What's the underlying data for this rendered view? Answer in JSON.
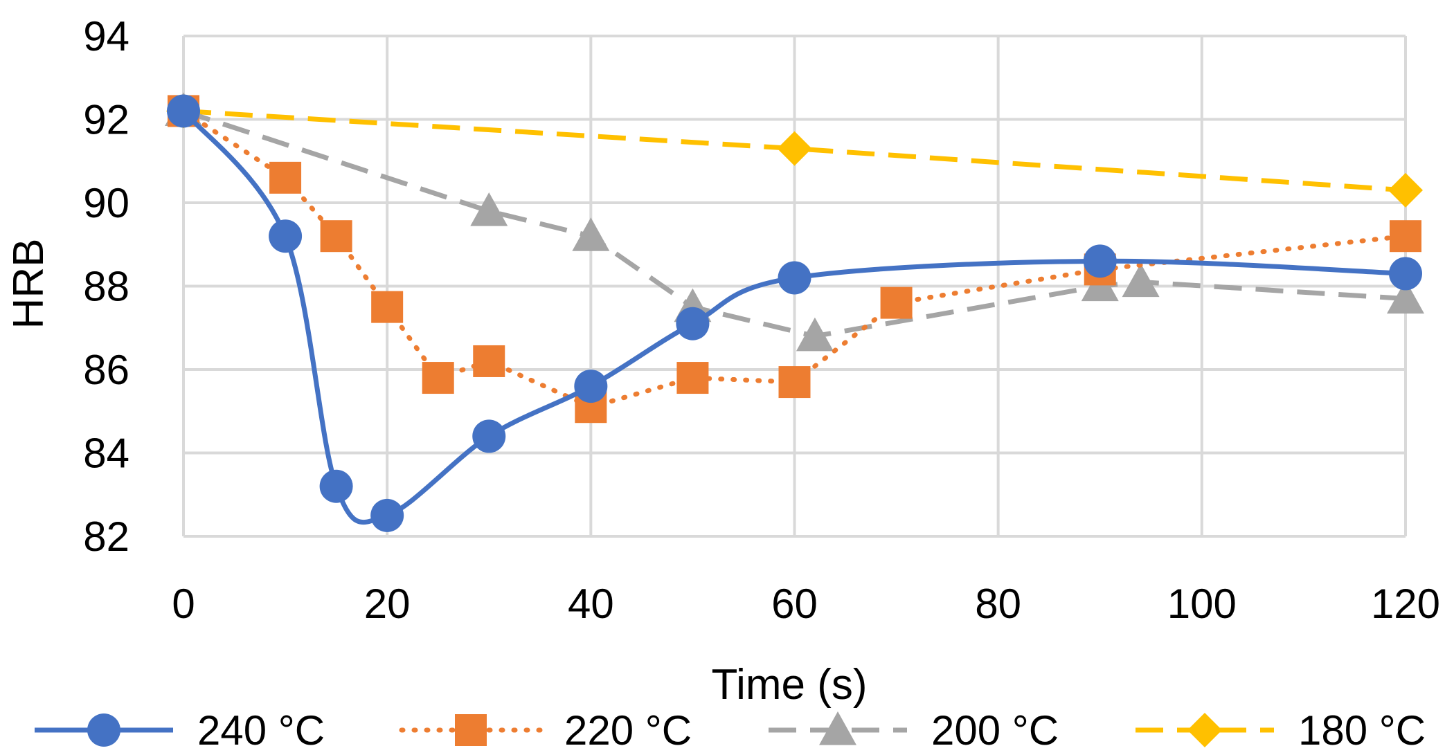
{
  "chart_data": {
    "type": "line",
    "title": "",
    "xlabel": "Time (s)",
    "ylabel": "HRB",
    "xlim": [
      0,
      120
    ],
    "ylim": [
      82,
      94
    ],
    "x_ticks": [
      0,
      20,
      40,
      60,
      80,
      100,
      120
    ],
    "y_ticks": [
      82,
      84,
      86,
      88,
      90,
      92,
      94
    ],
    "grid": true,
    "legend_position": "bottom",
    "series": [
      {
        "name": "240 °C",
        "color": "#4472C4",
        "line_style": "solid",
        "curve": "smooth",
        "marker": "circle",
        "points": [
          [
            0,
            92.2
          ],
          [
            10,
            89.2
          ],
          [
            15,
            83.2
          ],
          [
            20,
            82.5
          ],
          [
            30,
            84.4
          ],
          [
            40,
            85.6
          ],
          [
            50,
            87.1
          ],
          [
            60,
            88.2
          ],
          [
            90,
            88.6
          ],
          [
            120,
            88.3
          ]
        ]
      },
      {
        "name": "220 °C",
        "color": "#ED7D31",
        "line_style": "dotted",
        "curve": "straight",
        "marker": "square",
        "points": [
          [
            0,
            92.2
          ],
          [
            10,
            90.6
          ],
          [
            15,
            89.2
          ],
          [
            20,
            87.5
          ],
          [
            25,
            85.8
          ],
          [
            30,
            86.2
          ],
          [
            40,
            85.1
          ],
          [
            50,
            85.8
          ],
          [
            60,
            85.7
          ],
          [
            70,
            87.6
          ],
          [
            90,
            88.4
          ],
          [
            120,
            89.2
          ]
        ]
      },
      {
        "name": "200 °C",
        "color": "#A5A5A5",
        "line_style": "dashed",
        "curve": "straight",
        "marker": "triangle",
        "points": [
          [
            0,
            92.2
          ],
          [
            30,
            89.8
          ],
          [
            40,
            89.2
          ],
          [
            50,
            87.5
          ],
          [
            62,
            86.8
          ],
          [
            90,
            88.0
          ],
          [
            94,
            88.1
          ],
          [
            120,
            87.7
          ]
        ]
      },
      {
        "name": "180 °C",
        "color": "#FFC000",
        "line_style": "dashed",
        "curve": "straight",
        "marker": "diamond",
        "points": [
          [
            0,
            92.2
          ],
          [
            60,
            91.3
          ],
          [
            120,
            90.3
          ]
        ]
      }
    ]
  }
}
